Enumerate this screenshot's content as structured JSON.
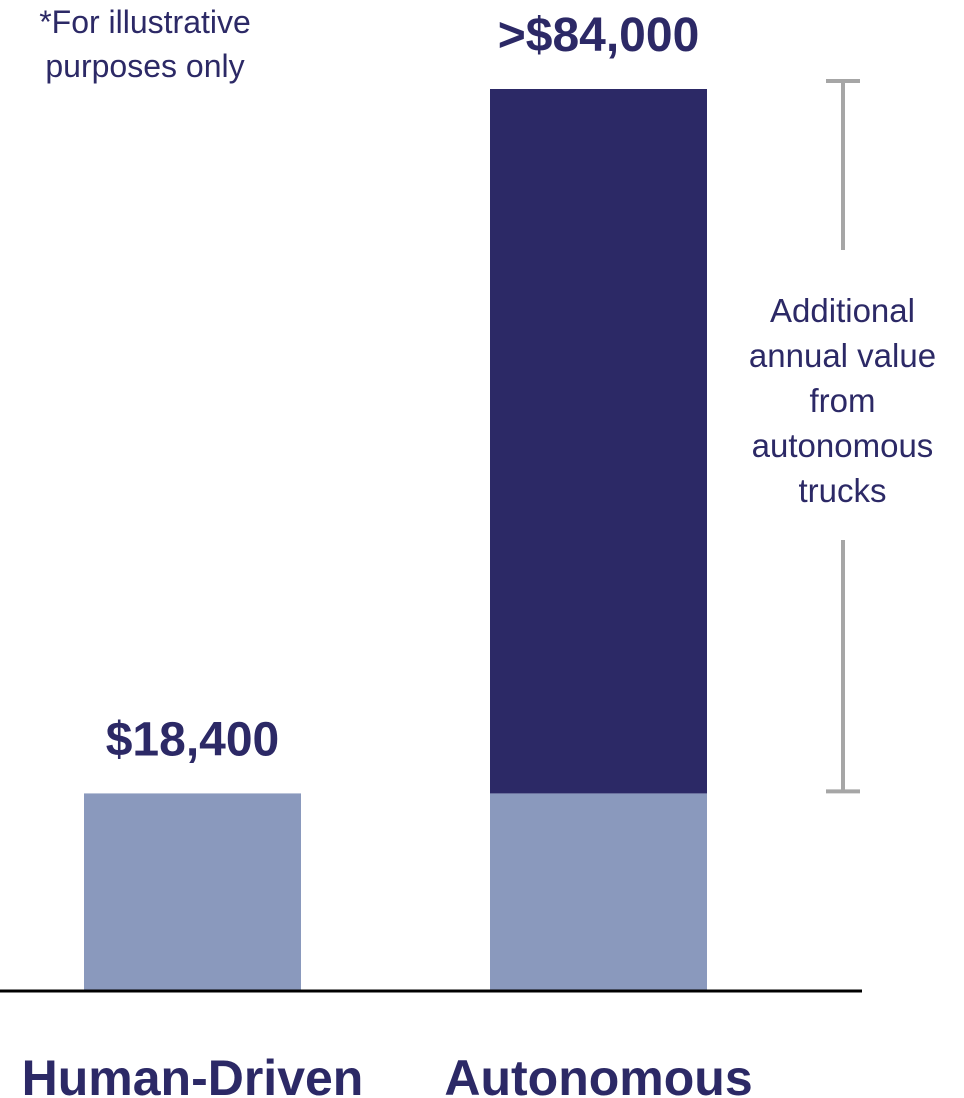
{
  "note": "*For illustrative purposes only",
  "bracket_label": "Additional annual value from autonomous trucks",
  "colors": {
    "base": "#8a99bd",
    "additional": "#2c2966",
    "text": "#2c2966",
    "bracket": "#a6a6a6",
    "axis": "#000000"
  },
  "chart_data": {
    "type": "bar",
    "stacked": true,
    "categories": [
      "Human-Driven",
      "Autonomous"
    ],
    "series": [
      {
        "values": [
          18400,
          18400
        ],
        "color": "#8a99bd"
      },
      {
        "values": [
          0,
          65600
        ],
        "color": "#2c2966"
      }
    ],
    "data_labels": [
      "$18,400",
      ">$84,000"
    ],
    "ylim": [
      0,
      84000
    ],
    "grid": false,
    "legend": "none"
  }
}
